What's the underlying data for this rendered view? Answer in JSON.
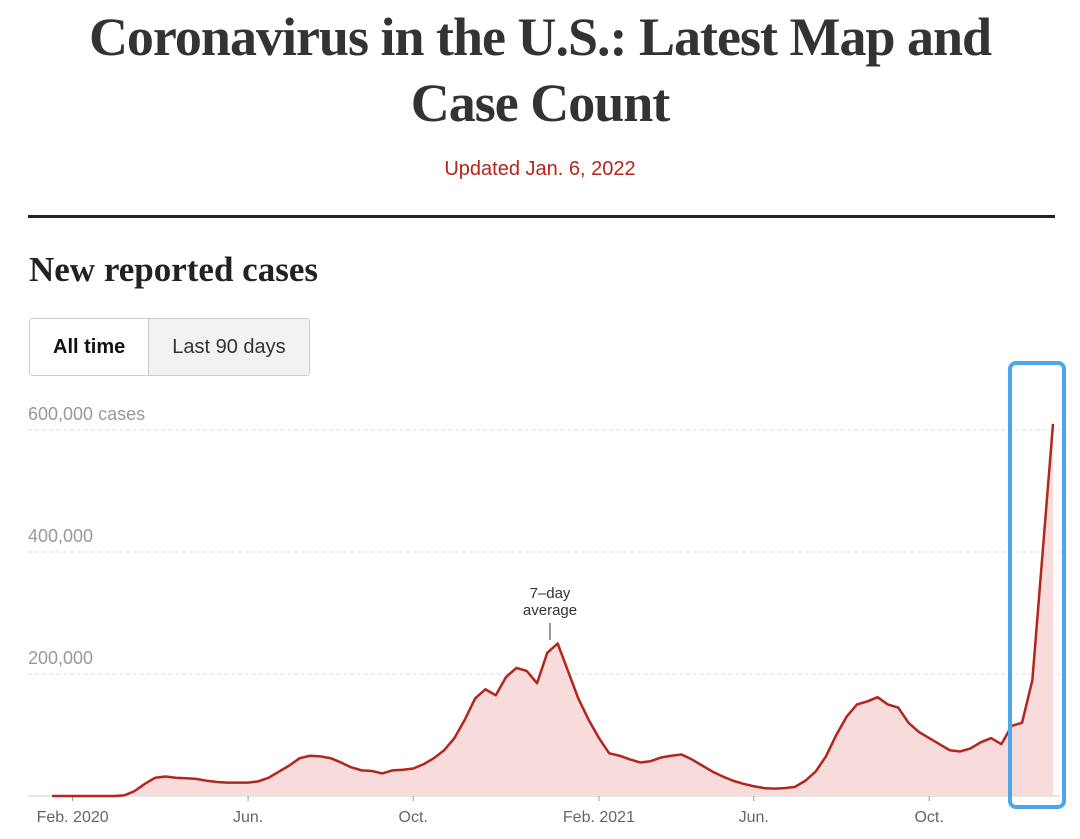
{
  "header": {
    "title": "Coronavirus in the U.S.: Latest Map and Case Count",
    "updated": "Updated Jan. 6, 2022"
  },
  "section_title": "New reported cases",
  "controls": [
    "All time",
    "Last 90 days"
  ],
  "chart_data": {
    "type": "line",
    "annotation": [
      "7–day",
      "average"
    ],
    "categories": [
      null,
      null,
      "Feb. 2020",
      null,
      null,
      null,
      null,
      null,
      null,
      null,
      null,
      null,
      null,
      null,
      null,
      null,
      null,
      null,
      null,
      "Jun.",
      null,
      null,
      null,
      null,
      null,
      null,
      null,
      null,
      null,
      null,
      null,
      null,
      null,
      null,
      null,
      "Oct.",
      null,
      null,
      null,
      null,
      null,
      null,
      null,
      null,
      null,
      null,
      null,
      null,
      null,
      null,
      null,
      null,
      null,
      "Feb. 2021",
      null,
      null,
      null,
      null,
      null,
      null,
      null,
      null,
      null,
      null,
      null,
      null,
      null,
      null,
      "Jun.",
      null,
      null,
      null,
      null,
      null,
      null,
      null,
      null,
      null,
      null,
      null,
      null,
      null,
      null,
      null,
      null,
      "Oct.",
      null,
      null,
      null,
      null,
      null,
      null,
      null,
      null,
      null,
      null,
      null,
      null
    ],
    "series": [
      {
        "color": "#b3261e",
        "fill_color": "#f8dcdc",
        "values": [
          0,
          0,
          0,
          0,
          0,
          0,
          0,
          1000,
          8000,
          20000,
          30000,
          32000,
          30000,
          29000,
          28000,
          25000,
          23000,
          22000,
          22000,
          22000,
          24000,
          30000,
          40000,
          50000,
          62000,
          66000,
          65000,
          62000,
          55000,
          47000,
          42000,
          41000,
          37000,
          42000,
          43000,
          45000,
          52000,
          62000,
          75000,
          95000,
          125000,
          160000,
          175000,
          165000,
          195000,
          210000,
          205000,
          185000,
          235000,
          250000,
          205000,
          160000,
          125000,
          95000,
          70000,
          66000,
          60000,
          55000,
          57000,
          63000,
          66000,
          68000,
          60000,
          50000,
          40000,
          32000,
          25000,
          20000,
          16000,
          13000,
          12000,
          13000,
          15000,
          25000,
          40000,
          65000,
          100000,
          130000,
          150000,
          155000,
          162000,
          150000,
          145000,
          120000,
          105000,
          95000,
          85000,
          75000,
          73000,
          78000,
          88000,
          95000,
          85000,
          115000,
          120000,
          190000,
          400000,
          610000
        ]
      }
    ],
    "ylim": [
      0,
      640000
    ],
    "yticks": [
      {
        "value": 200000,
        "label": "200,000"
      },
      {
        "value": 400000,
        "label": "400,000"
      },
      {
        "value": 600000,
        "label": "600,000 cases"
      }
    ],
    "grid": true
  }
}
